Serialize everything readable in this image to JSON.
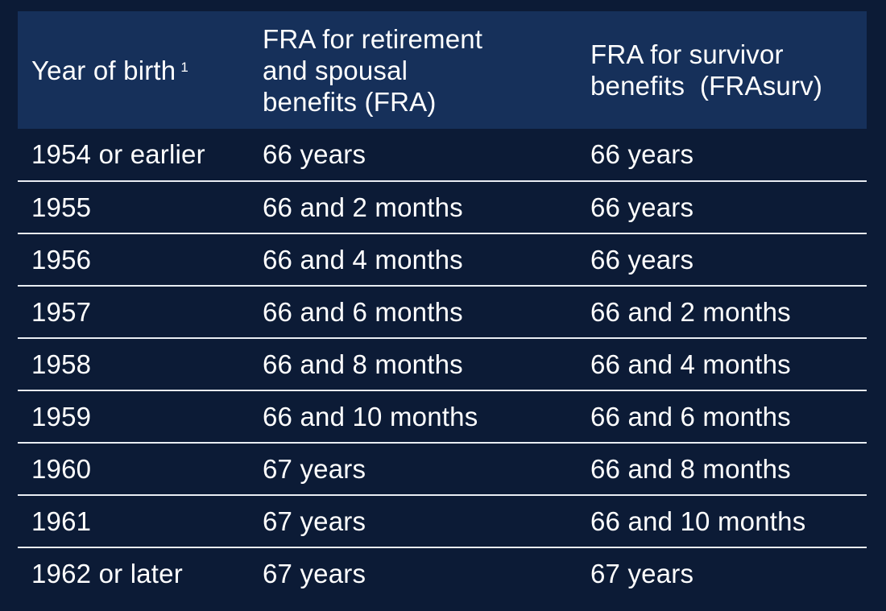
{
  "table": {
    "headers": {
      "col1": "Year of birth",
      "col1_footnote": "1",
      "col2_line1": "FRA for retirement",
      "col2_line2": "and spousal",
      "col2_line3": "benefits (FRA)",
      "col3_line1": "FRA for survivor",
      "col3_line2": "benefits  (FRAsurv)"
    },
    "rows": [
      {
        "year": "1954 or earlier",
        "fra": "66 years",
        "frasurv": "66 years"
      },
      {
        "year": "1955",
        "fra": "66 and 2 months",
        "frasurv": "66 years"
      },
      {
        "year": "1956",
        "fra": "66 and 4 months",
        "frasurv": "66 years"
      },
      {
        "year": "1957",
        "fra": "66 and 6 months",
        "frasurv": "66 and 2 months"
      },
      {
        "year": "1958",
        "fra": "66 and 8 months",
        "frasurv": "66 and 4 months"
      },
      {
        "year": "1959",
        "fra": "66 and 10 months",
        "frasurv": "66 and 6 months"
      },
      {
        "year": "1960",
        "fra": "67 years",
        "frasurv": "66 and 8 months"
      },
      {
        "year": "1961",
        "fra": "67 years",
        "frasurv": "66 and 10 months"
      },
      {
        "year": "1962 or later",
        "fra": "67 years",
        "frasurv": "67 years"
      }
    ]
  },
  "colors": {
    "background": "#0c1b36",
    "header_background": "#16305a",
    "text": "#ffffff",
    "divider": "#e9edf3"
  }
}
